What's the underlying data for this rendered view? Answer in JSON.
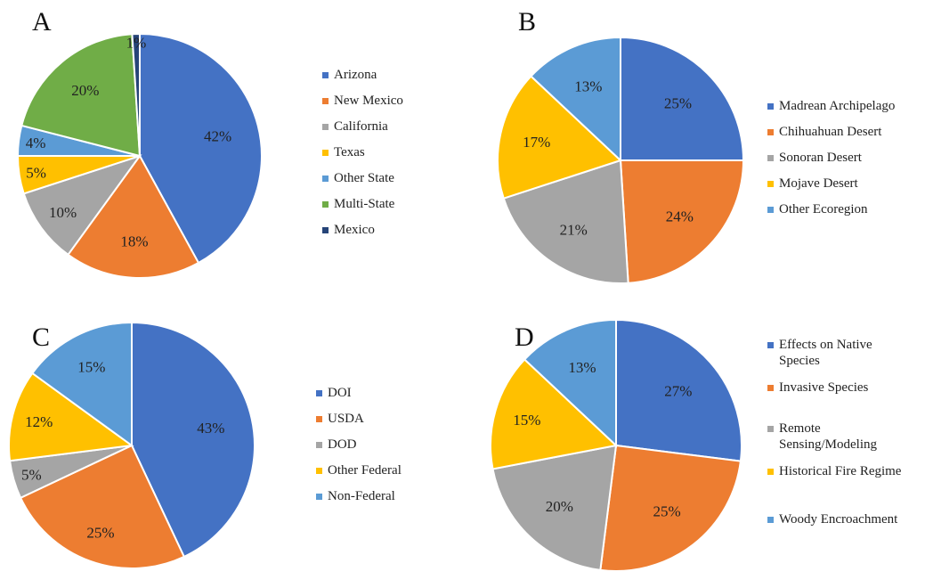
{
  "colors": {
    "blue": "#4472C4",
    "orange": "#ED7D31",
    "gray": "#A5A5A5",
    "gold": "#FFC000",
    "lightblue": "#5B9BD5",
    "green": "#70AD47",
    "navy": "#264478"
  },
  "chart_data": [
    {
      "type": "pie",
      "panel": "A",
      "legend_placement": "right",
      "slices": [
        {
          "label": "Arizona",
          "value": 42,
          "text": "42%",
          "color": "#4472C4"
        },
        {
          "label": "New Mexico",
          "value": 18,
          "text": "18%",
          "color": "#ED7D31"
        },
        {
          "label": "California",
          "value": 10,
          "text": "10%",
          "color": "#A5A5A5"
        },
        {
          "label": "Texas",
          "value": 5,
          "text": "5%",
          "color": "#FFC000"
        },
        {
          "label": "Other State",
          "value": 4,
          "text": "4%",
          "color": "#5B9BD5"
        },
        {
          "label": "Multi-State",
          "value": 20,
          "text": "20%",
          "color": "#70AD47"
        },
        {
          "label": "Mexico",
          "value": 1,
          "text": "1%",
          "color": "#264478"
        }
      ]
    },
    {
      "type": "pie",
      "panel": "B",
      "legend_placement": "right",
      "slices": [
        {
          "label": "Madrean Archipelago",
          "value": 25,
          "text": "25%",
          "color": "#4472C4"
        },
        {
          "label": "Chihuahuan Desert",
          "value": 24,
          "text": "24%",
          "color": "#ED7D31"
        },
        {
          "label": "Sonoran Desert",
          "value": 21,
          "text": "21%",
          "color": "#A5A5A5"
        },
        {
          "label": "Mojave Desert",
          "value": 17,
          "text": "17%",
          "color": "#FFC000"
        },
        {
          "label": "Other Ecoregion",
          "value": 13,
          "text": "13%",
          "color": "#5B9BD5"
        }
      ]
    },
    {
      "type": "pie",
      "panel": "C",
      "legend_placement": "right",
      "slices": [
        {
          "label": "DOI",
          "value": 43,
          "text": "43%",
          "color": "#4472C4"
        },
        {
          "label": "USDA",
          "value": 25,
          "text": "25%",
          "color": "#ED7D31"
        },
        {
          "label": "DOD",
          "value": 5,
          "text": "5%",
          "color": "#A5A5A5"
        },
        {
          "label": "Other Federal",
          "value": 12,
          "text": "12%",
          "color": "#FFC000"
        },
        {
          "label": "Non-Federal",
          "value": 15,
          "text": "15%",
          "color": "#5B9BD5"
        }
      ]
    },
    {
      "type": "pie",
      "panel": "D",
      "legend_placement": "right",
      "slices": [
        {
          "label": "Effects on Native\nSpecies",
          "value": 27,
          "text": "27%",
          "color": "#4472C4"
        },
        {
          "label": "Invasive Species",
          "value": 25,
          "text": "25%",
          "color": "#ED7D31"
        },
        {
          "label": "Remote\nSensing/Modeling",
          "value": 20,
          "text": "20%",
          "color": "#A5A5A5"
        },
        {
          "label": "Historical Fire Regime",
          "value": 15,
          "text": "15%",
          "color": "#FFC000"
        },
        {
          "label": "Woody Encroachment",
          "value": 13,
          "text": "13%",
          "color": "#5B9BD5"
        }
      ]
    }
  ]
}
